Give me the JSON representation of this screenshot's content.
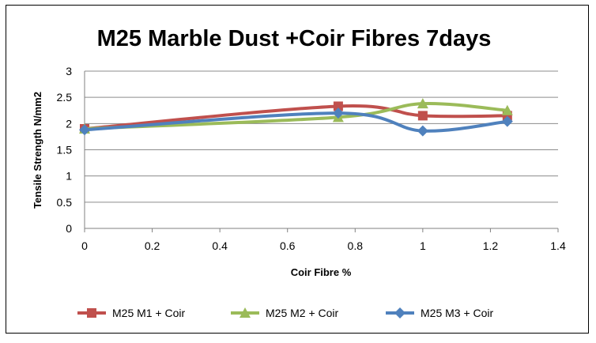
{
  "chart_data": {
    "type": "line",
    "title": "M25 Marble Dust +Coir Fibres 7days",
    "xlabel": "Coir Fibre %",
    "ylabel": "Tensile  Strength N/mm2",
    "xlim": [
      0,
      1.4
    ],
    "ylim": [
      0,
      3
    ],
    "xticks": [
      "0",
      "0.2",
      "0.4",
      "0.6",
      "0.8",
      "1",
      "1.2",
      "1.4"
    ],
    "yticks": [
      "0",
      "0.5",
      "1",
      "1.5",
      "2",
      "2.5",
      "3"
    ],
    "grid": "horizontal",
    "legend_position": "bottom",
    "series": [
      {
        "name": "M25 M1 + Coir",
        "color": "#C0504D",
        "marker": "square",
        "x": [
          0,
          0.75,
          1,
          1.25
        ],
        "y": [
          1.9,
          2.33,
          2.15,
          2.15
        ]
      },
      {
        "name": "M25 M2 + Coir",
        "color": "#9BBB59",
        "marker": "triangle",
        "x": [
          0,
          0.75,
          1,
          1.25
        ],
        "y": [
          1.9,
          2.12,
          2.38,
          2.25
        ]
      },
      {
        "name": "M25 M3 + Coir",
        "color": "#4F81BD",
        "marker": "diamond",
        "x": [
          0,
          0.75,
          1,
          1.25
        ],
        "y": [
          1.88,
          2.2,
          1.86,
          2.04
        ]
      }
    ]
  }
}
